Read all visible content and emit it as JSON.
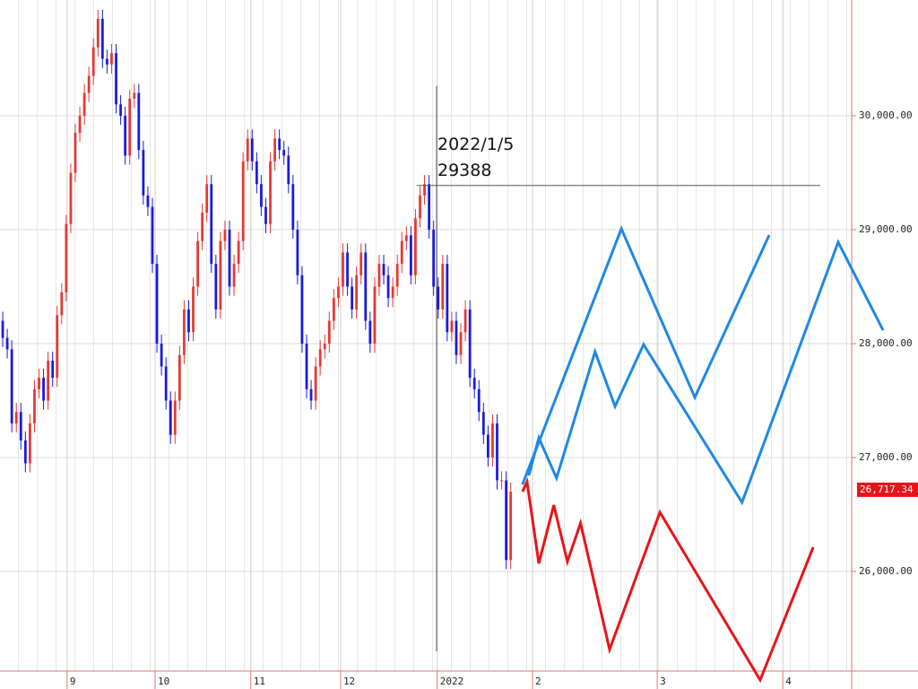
{
  "chart_data": {
    "type": "candlestick",
    "xlim": [
      -0.6,
      201.8
    ],
    "ylim": [
      25126,
      31016
    ],
    "xticks": [
      {
        "value": 14.2,
        "label": "9"
      },
      {
        "value": 33.6,
        "label": "10"
      },
      {
        "value": 54.7,
        "label": "11"
      },
      {
        "value": 74.5,
        "label": "12"
      },
      {
        "value": 95.8,
        "label": "2022"
      },
      {
        "value": 116.8,
        "label": "2"
      },
      {
        "value": 144.3,
        "label": "3"
      },
      {
        "value": 172,
        "label": "4"
      }
    ],
    "yticks": [
      {
        "value": 26000,
        "label": "26,000.00"
      },
      {
        "value": 27000,
        "label": "27,000.00"
      },
      {
        "value": 28000,
        "label": "28,000.00"
      },
      {
        "value": 29000,
        "label": "29,000.00"
      },
      {
        "value": 30000,
        "label": "30,000.00"
      }
    ],
    "grid": true,
    "up_color": "#e53935",
    "down_color": "#1a1adf",
    "ohlc": [
      [
        28200,
        28280,
        27970,
        28050
      ],
      [
        28050,
        28130,
        27870,
        27950
      ],
      [
        27950,
        28030,
        27220,
        27300
      ],
      [
        27300,
        27480,
        27220,
        27400
      ],
      [
        27400,
        27480,
        27070,
        27150
      ],
      [
        27150,
        27230,
        26870,
        26950
      ],
      [
        26950,
        27380,
        26870,
        27300
      ],
      [
        27300,
        27680,
        27220,
        27600
      ],
      [
        27600,
        27780,
        27520,
        27700
      ],
      [
        27700,
        27780,
        27420,
        27500
      ],
      [
        27500,
        27930,
        27420,
        27850
      ],
      [
        27850,
        27930,
        27620,
        27700
      ],
      [
        27700,
        28330,
        27620,
        28250
      ],
      [
        28250,
        28530,
        28170,
        28450
      ],
      [
        28450,
        29130,
        28370,
        29050
      ],
      [
        29050,
        29580,
        28970,
        29500
      ],
      [
        29500,
        29930,
        29420,
        29850
      ],
      [
        29850,
        30080,
        29770,
        30000
      ],
      [
        30000,
        30280,
        29920,
        30200
      ],
      [
        30200,
        30430,
        30120,
        30350
      ],
      [
        30350,
        30680,
        30270,
        30600
      ],
      [
        30600,
        30930,
        30520,
        30850
      ],
      [
        30850,
        30930,
        30420,
        30500
      ],
      [
        30500,
        30580,
        30370,
        30450
      ],
      [
        30450,
        30630,
        30370,
        30550
      ],
      [
        30550,
        30630,
        30020,
        30100
      ],
      [
        30100,
        30180,
        29920,
        30000
      ],
      [
        30000,
        30080,
        29570,
        29650
      ],
      [
        29650,
        30230,
        29570,
        30150
      ],
      [
        30150,
        30280,
        30070,
        30200
      ],
      [
        30200,
        30280,
        29620,
        29700
      ],
      [
        29700,
        29780,
        29220,
        29300
      ],
      [
        29300,
        29380,
        29120,
        29200
      ],
      [
        29200,
        29280,
        28620,
        28700
      ],
      [
        28700,
        28780,
        27920,
        28000
      ],
      [
        28000,
        28080,
        27720,
        27800
      ],
      [
        27800,
        27880,
        27420,
        27500
      ],
      [
        27500,
        27580,
        27120,
        27200
      ],
      [
        27200,
        27580,
        27120,
        27500
      ],
      [
        27500,
        27980,
        27420,
        27900
      ],
      [
        27900,
        28380,
        27820,
        28300
      ],
      [
        28300,
        28380,
        28020,
        28100
      ],
      [
        28100,
        28580,
        28020,
        28500
      ],
      [
        28500,
        28980,
        28420,
        28900
      ],
      [
        28900,
        29230,
        28820,
        29150
      ],
      [
        29150,
        29480,
        29070,
        29400
      ],
      [
        29400,
        29480,
        28620,
        28700
      ],
      [
        28700,
        28780,
        28220,
        28300
      ],
      [
        28300,
        28980,
        28220,
        28900
      ],
      [
        28900,
        29080,
        28820,
        29000
      ],
      [
        29000,
        29080,
        28420,
        28500
      ],
      [
        28500,
        28780,
        28420,
        28700
      ],
      [
        28700,
        28980,
        28620,
        28900
      ],
      [
        28900,
        29680,
        28820,
        29600
      ],
      [
        29600,
        29880,
        29520,
        29800
      ],
      [
        29800,
        29880,
        29520,
        29600
      ],
      [
        29600,
        29680,
        29320,
        29400
      ],
      [
        29400,
        29480,
        29120,
        29200
      ],
      [
        29200,
        29280,
        28970,
        29050
      ],
      [
        29050,
        29680,
        28970,
        29600
      ],
      [
        29600,
        29880,
        29520,
        29800
      ],
      [
        29800,
        29880,
        29620,
        29700
      ],
      [
        29700,
        29780,
        29570,
        29650
      ],
      [
        29650,
        29730,
        29320,
        29400
      ],
      [
        29400,
        29480,
        28920,
        29000
      ],
      [
        29000,
        29080,
        28520,
        28600
      ],
      [
        28600,
        28680,
        27920,
        28000
      ],
      [
        28000,
        28080,
        27520,
        27600
      ],
      [
        27600,
        27680,
        27420,
        27500
      ],
      [
        27500,
        27880,
        27420,
        27800
      ],
      [
        27800,
        28030,
        27720,
        27950
      ],
      [
        27950,
        28080,
        27870,
        28000
      ],
      [
        28000,
        28280,
        27920,
        28200
      ],
      [
        28200,
        28480,
        28120,
        28400
      ],
      [
        28400,
        28580,
        28320,
        28500
      ],
      [
        28500,
        28880,
        28420,
        28800
      ],
      [
        28800,
        28880,
        28420,
        28500
      ],
      [
        28500,
        28580,
        28220,
        28300
      ],
      [
        28300,
        28680,
        28220,
        28600
      ],
      [
        28600,
        28880,
        28520,
        28800
      ],
      [
        28800,
        28880,
        28120,
        28200
      ],
      [
        28200,
        28280,
        27920,
        28000
      ],
      [
        28000,
        28580,
        27920,
        28500
      ],
      [
        28500,
        28780,
        28420,
        28700
      ],
      [
        28700,
        28780,
        28520,
        28600
      ],
      [
        28600,
        28680,
        28320,
        28400
      ],
      [
        28400,
        28580,
        28320,
        28500
      ],
      [
        28500,
        28780,
        28420,
        28700
      ],
      [
        28700,
        28980,
        28620,
        28900
      ],
      [
        28900,
        29030,
        28820,
        28950
      ],
      [
        28950,
        29030,
        28520,
        28600
      ],
      [
        28600,
        29180,
        28520,
        29100
      ],
      [
        29100,
        29380,
        29020,
        29300
      ],
      [
        29300,
        29480,
        29220,
        29400
      ],
      [
        29400,
        29480,
        28920,
        29000
      ],
      [
        29000,
        29080,
        28420,
        28500
      ],
      [
        28500,
        28580,
        28220,
        28300
      ],
      [
        28300,
        28780,
        28220,
        28700
      ],
      [
        28700,
        28780,
        28020,
        28100
      ],
      [
        28100,
        28280,
        28020,
        28200
      ],
      [
        28200,
        28280,
        27820,
        27900
      ],
      [
        27900,
        28180,
        27820,
        28100
      ],
      [
        28100,
        28380,
        28020,
        28300
      ],
      [
        28300,
        28380,
        27620,
        27700
      ],
      [
        27700,
        27780,
        27520,
        27600
      ],
      [
        27600,
        27680,
        27320,
        27400
      ],
      [
        27400,
        27480,
        27120,
        27200
      ],
      [
        27200,
        27280,
        26920,
        27000
      ],
      [
        27000,
        27380,
        26920,
        27300
      ],
      [
        27300,
        27380,
        26720,
        26800
      ],
      [
        26800,
        26880,
        26720,
        26800
      ],
      [
        26800,
        26880,
        26020,
        26100
      ],
      [
        26100,
        26780,
        26020,
        26700
      ]
    ],
    "lines": [
      {
        "color": "#1e88e5",
        "x": [
          114.6,
          136.4,
          152.6,
          169.0
        ],
        "values": [
          26764,
          29008,
          27528,
          28953
        ]
      },
      {
        "color": "#1e88e5",
        "x": [
          116.0,
          118.2,
          122.1,
          130.6,
          135.0,
          141.3,
          163.0,
          184.2,
          194.1
        ],
        "values": [
          26843,
          27173,
          26819,
          27929,
          27449,
          27992,
          26606,
          28890,
          28118
        ]
      },
      {
        "color": "#e8141a",
        "x": [
          114.6,
          115.6,
          118.2,
          121.5,
          124.5,
          127.4,
          133.8,
          144.9,
          167.0,
          178.7
        ],
        "values": [
          26701,
          26787,
          26071,
          26583,
          26087,
          26425,
          25315,
          26520,
          25047,
          26213
        ]
      }
    ],
    "annotation": {
      "text": "2022/1/5",
      "value": 29388
    },
    "last_price": {
      "value": 26717.34,
      "label": "26,717.34"
    }
  }
}
